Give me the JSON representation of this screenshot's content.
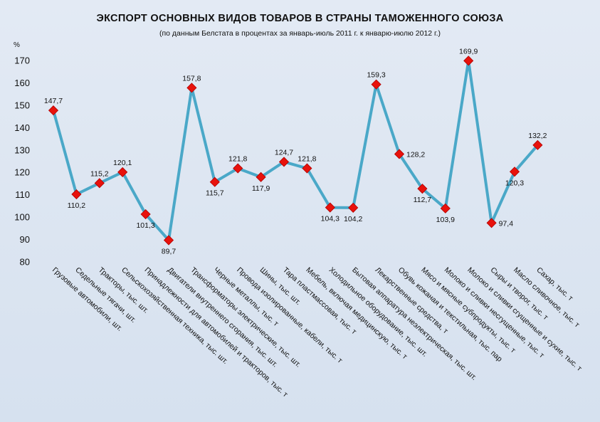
{
  "chart_data": {
    "type": "line",
    "title": "ЭКСПОРТ ОСНОВНЫХ ВИДОВ ТОВАРОВ В СТРАНЫ ТАМОЖЕННОГО СОЮЗА",
    "subtitle": "(по данным Белстата в процентах за январь-июль 2011 г. к январю-июлю 2012 г.)",
    "ylabel": "%",
    "ylim": [
      80,
      170
    ],
    "yticks": [
      80,
      90,
      100,
      110,
      120,
      130,
      140,
      150,
      160,
      170
    ],
    "grid": false,
    "legend": "none",
    "line_color": "#4aa8c8",
    "marker_color": "#e8120c",
    "categories": [
      "Грузовые автомобили, шт.",
      "Седельные тягачи, шт.",
      "Тракторы, тыс. шт.",
      "Сельскохозяйственная техника, тыс. шт.",
      "Принадлежности для автомобилей и тракторов, тыс. т",
      "Двигатели внутреннего сгорания, тыс. шт.",
      "Трансформаторы электрические, тыс. шт.",
      "Черные металлы, тыс. т",
      "Провода изолированные, кабели, тыс. т",
      "Шины, тыс. шт.",
      "Тара пластмассовая, тыс. т",
      "Мебель, включая медицинскую, тыс. т",
      "Холодильное оборудование, тыс. шт.",
      "Бытовая аппаратура неэлектрическая, тыс. шт.",
      "Лекарственные средства, т",
      "Обувь кожаная и текстильная, тыс. пар",
      "Мясо и мясные субпродукты, тыс. т",
      "Молоко и сливки несгущенные, тыс. т",
      "Молоко и сливки сгущенные и сухие, тыс. т",
      "Сыры и творог, тыс. т",
      "Масло сливочное, тыс. т",
      "Сахар, тыс. т"
    ],
    "values": [
      147.7,
      110.2,
      115.2,
      120.1,
      101.3,
      89.7,
      157.8,
      115.7,
      121.8,
      117.9,
      124.7,
      121.8,
      104.3,
      104.2,
      159.3,
      128.2,
      112.7,
      103.9,
      169.9,
      97.4,
      120.3,
      132.2
    ],
    "data_labels": [
      "147,7",
      "110,2",
      "115,2",
      "120,1",
      "101,3",
      "89,7",
      "157,8",
      "115,7",
      "121,8",
      "117,9",
      "124,7",
      "121,8",
      "104,3",
      "104,2",
      "159,3",
      "128,2",
      "112,7",
      "103,9",
      "169,9",
      "97,4",
      "120,3",
      "132,2"
    ]
  }
}
